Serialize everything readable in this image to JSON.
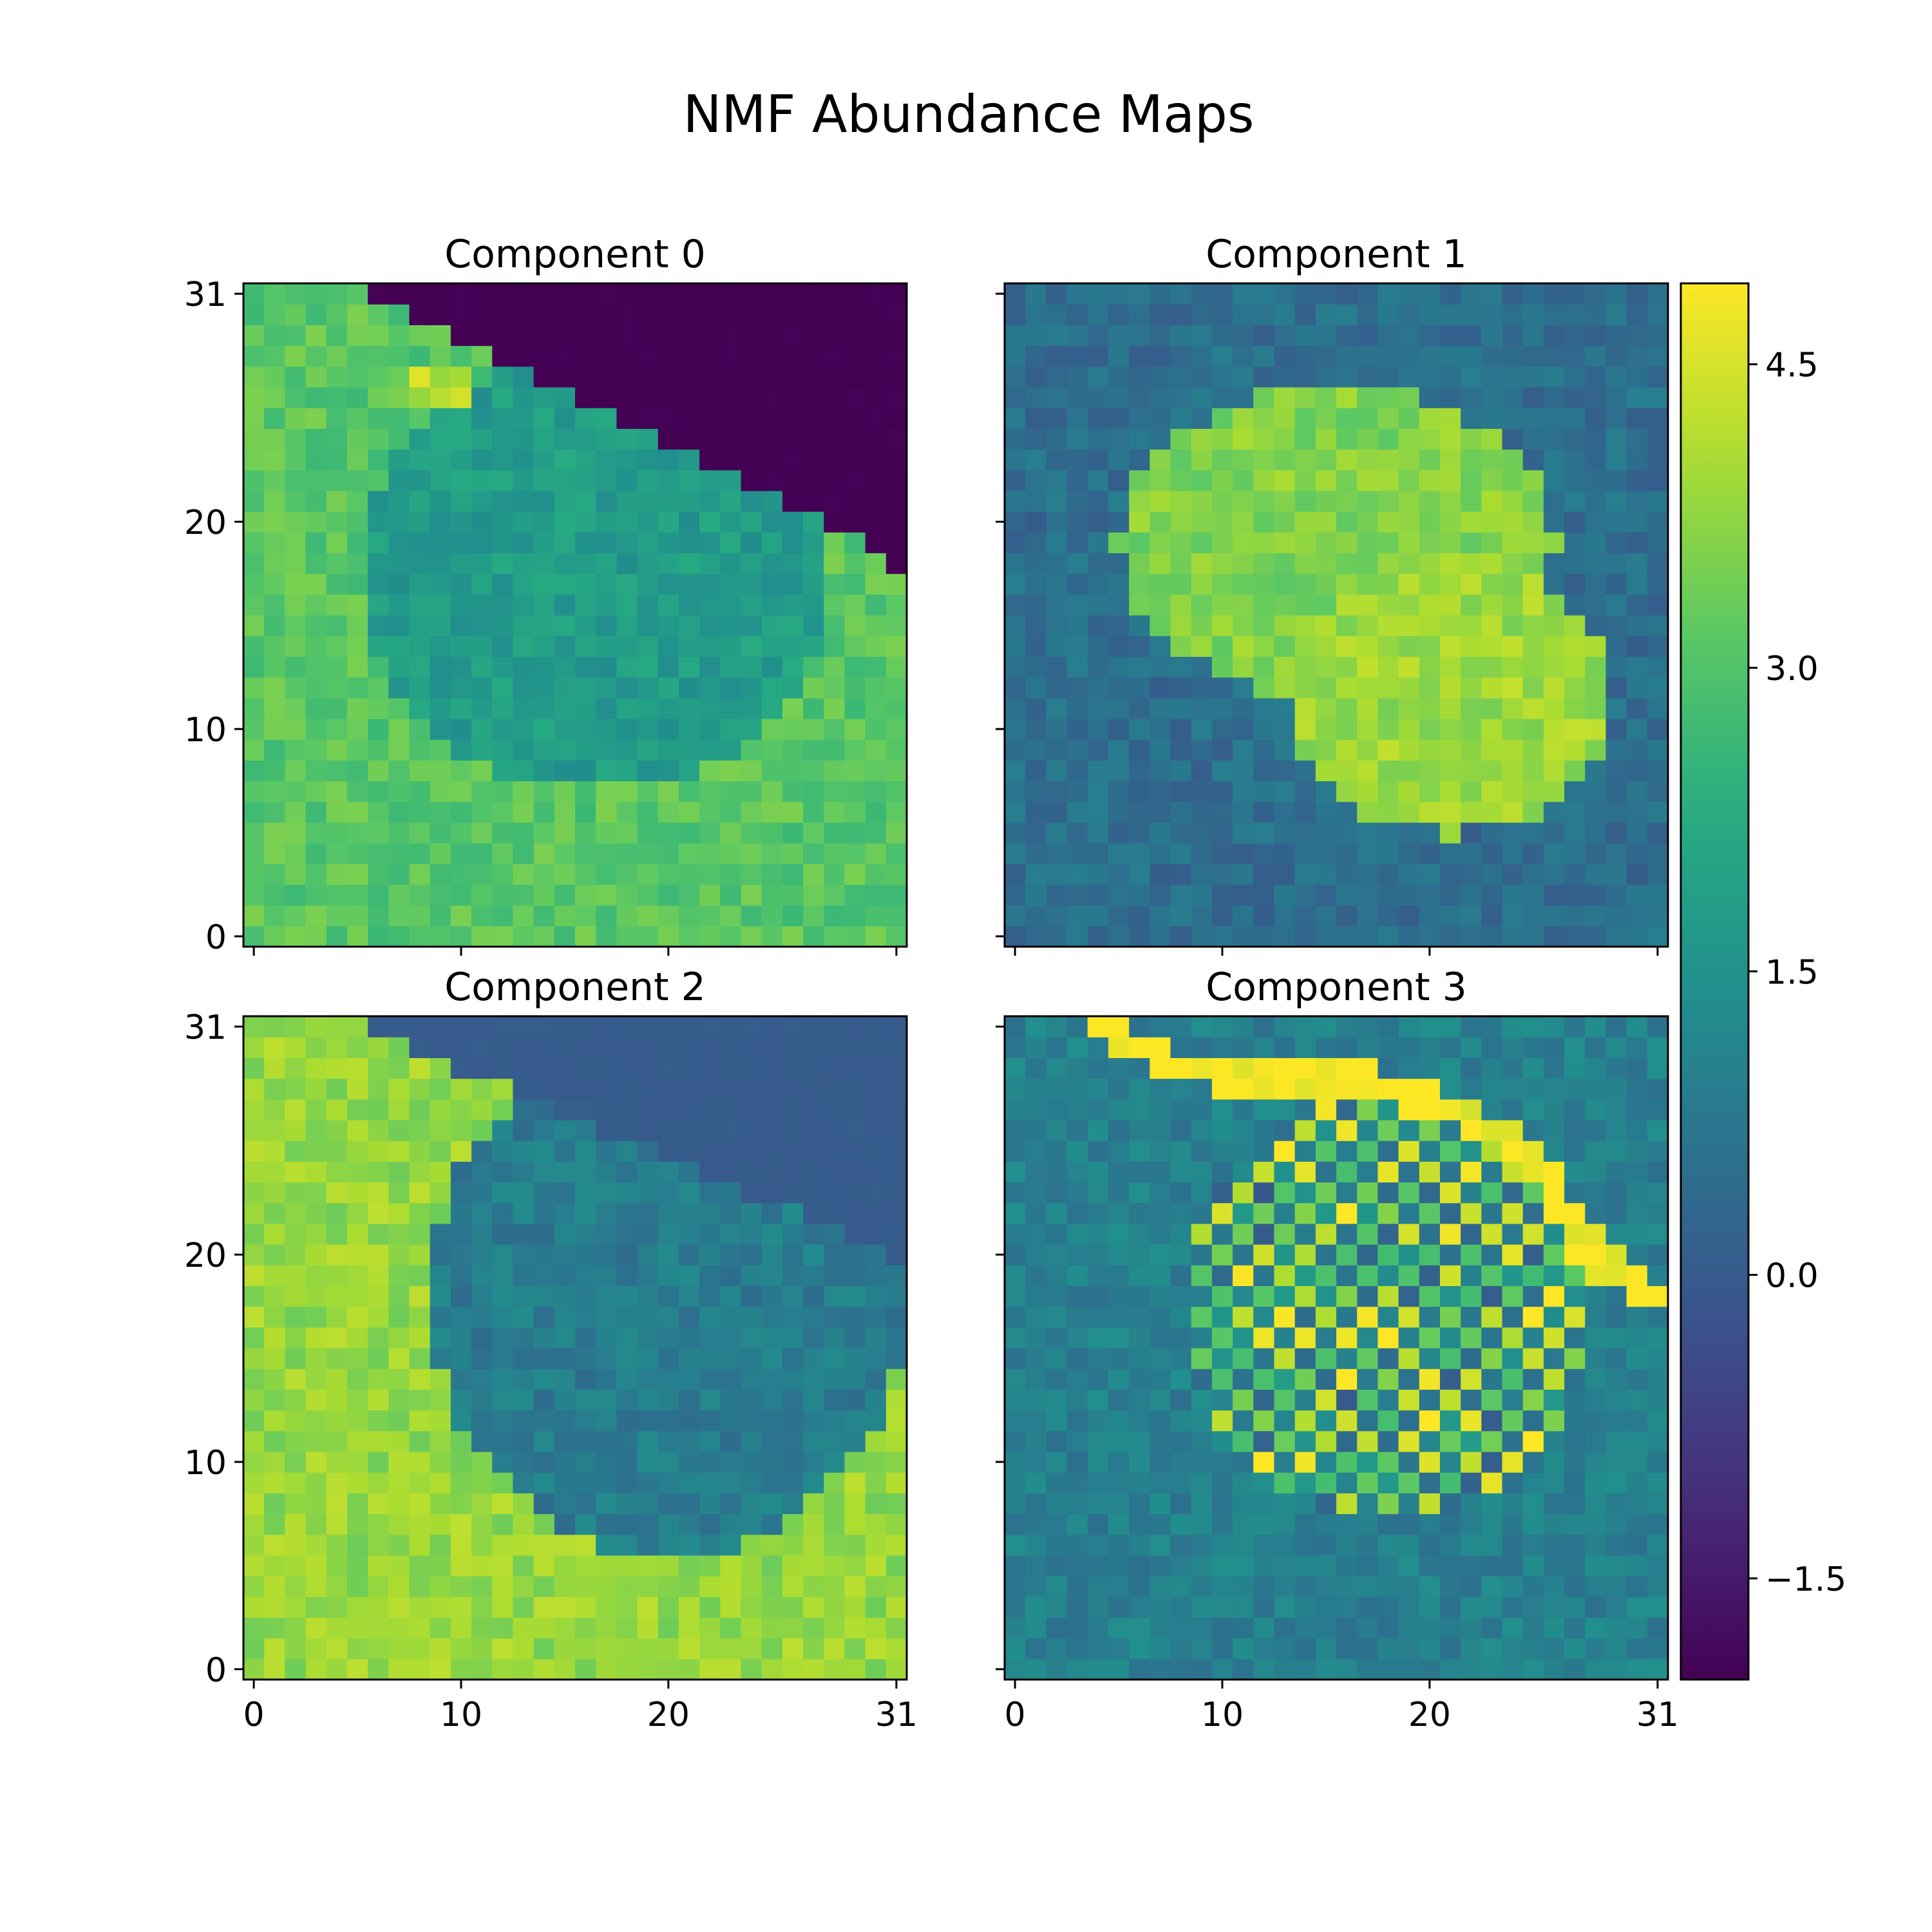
{
  "figure": {
    "title": "NMF Abundance Maps"
  },
  "chart_data": {
    "type": "heatmap",
    "colormap": "viridis",
    "grid_size": 32,
    "origin": "lower",
    "vmin": -2.0,
    "vmax": 4.9,
    "colorbar": {
      "ticks": [
        -1.5,
        0.0,
        1.5,
        3.0,
        4.5
      ],
      "tick_labels": [
        "−1.5",
        "0.0",
        "1.5",
        "3.0",
        "4.5"
      ]
    },
    "x_ticks": [
      0,
      10,
      20,
      31
    ],
    "x_tick_labels": [
      "0",
      "10",
      "20",
      "31"
    ],
    "y_ticks": [
      0,
      10,
      20,
      31
    ],
    "y_tick_labels": [
      "0",
      "10",
      "20",
      "31"
    ],
    "panels": [
      {
        "title": "Component 0",
        "show_x_labels": false,
        "show_y_labels": true,
        "regions": [
          {
            "kind": "background",
            "value": 3.1
          },
          {
            "kind": "ellipse",
            "cx": 16.5,
            "cy": 17.5,
            "rx": 11.5,
            "ry": 10.5,
            "value": 1.8
          },
          {
            "kind": "ellipse",
            "cx": 9.0,
            "cy": 26.3,
            "rx": 1.8,
            "ry": 0.9,
            "value": 4.2
          },
          {
            "kind": "upper-right-cut",
            "x0": 5.0,
            "x1": 31.0,
            "y0": 31.5,
            "y1": 18.0,
            "value": -2.0
          }
        ]
      },
      {
        "title": "Component 1",
        "show_x_labels": false,
        "show_y_labels": false,
        "regions": [
          {
            "kind": "background",
            "value": 0.5
          },
          {
            "kind": "ellipse",
            "cx": 15.5,
            "cy": 19.0,
            "rx": 10.5,
            "ry": 7.5,
            "value": 3.6
          },
          {
            "kind": "ellipse",
            "cx": 21.0,
            "cy": 11.5,
            "rx": 8.0,
            "ry": 6.5,
            "value": 3.9
          }
        ]
      },
      {
        "title": "Component 2",
        "show_x_labels": true,
        "show_y_labels": true,
        "regions": [
          {
            "kind": "background",
            "value": 3.8
          },
          {
            "kind": "ellipse",
            "cx": 20.0,
            "cy": 18.0,
            "rx": 11.5,
            "ry": 12.5,
            "value": 0.9
          },
          {
            "kind": "upper-right-cut",
            "x0": 4.0,
            "x1": 31.0,
            "y0": 31.5,
            "y1": 20.0,
            "value": 0.0
          }
        ]
      },
      {
        "title": "Component 3",
        "show_x_labels": true,
        "show_y_labels": false,
        "regions": [
          {
            "kind": "background",
            "value": 1.0
          },
          {
            "kind": "checker-ellipse",
            "cx": 18.0,
            "cy": 17.5,
            "rx": 10.0,
            "ry": 10.0,
            "value": 3.2,
            "alt_value": 0.3
          },
          {
            "kind": "band",
            "points": [
              [
                4,
                31
              ],
              [
                8,
                29
              ],
              [
                12,
                28.5
              ],
              [
                17,
                28.5
              ],
              [
                21,
                27
              ],
              [
                25,
                25
              ],
              [
                27,
                21
              ],
              [
                29,
                19
              ],
              [
                31,
                18
              ]
            ],
            "value": 4.9
          }
        ]
      }
    ]
  }
}
